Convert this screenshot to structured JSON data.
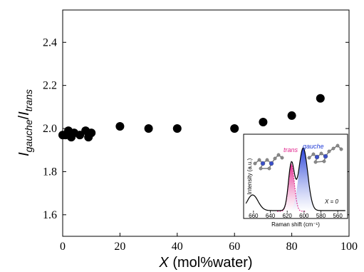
{
  "chart_data": {
    "type": "scatter",
    "xlabel": {
      "italic": "X",
      "rest": " (mol%water)"
    },
    "ylabel": {
      "i1": "I",
      "sub1": "gauche",
      "slash": "/",
      "i2": "I",
      "sub2": "trans"
    },
    "xlim": [
      0,
      100
    ],
    "ylim": [
      1.5,
      2.55
    ],
    "xticks": [
      0,
      20,
      40,
      60,
      80,
      100
    ],
    "yticks": [
      1.6,
      1.8,
      2.0,
      2.2,
      2.4
    ],
    "xtick_labels": [
      "0",
      "20",
      "40",
      "60",
      "80",
      "100"
    ],
    "ytick_labels": [
      "1.6",
      "1.8",
      "2.0",
      "2.2",
      "2.4"
    ],
    "grid": false,
    "points": [
      {
        "x": 0,
        "y": 1.97
      },
      {
        "x": 1,
        "y": 1.97
      },
      {
        "x": 2,
        "y": 1.99
      },
      {
        "x": 3,
        "y": 1.96
      },
      {
        "x": 4,
        "y": 1.98
      },
      {
        "x": 6,
        "y": 1.97
      },
      {
        "x": 8,
        "y": 1.99
      },
      {
        "x": 9,
        "y": 1.96
      },
      {
        "x": 10,
        "y": 1.98
      },
      {
        "x": 20,
        "y": 2.01
      },
      {
        "x": 30,
        "y": 2.0
      },
      {
        "x": 40,
        "y": 2.0
      },
      {
        "x": 60,
        "y": 2.0
      },
      {
        "x": 70,
        "y": 2.03
      },
      {
        "x": 80,
        "y": 2.06
      },
      {
        "x": 90,
        "y": 2.14
      }
    ],
    "marker_color": "#000000",
    "inset": {
      "type": "line",
      "xlabel": "Raman shift (cm⁻¹)",
      "ylabel": "Intensity (a.u.)",
      "xlim": [
        670,
        550
      ],
      "xticks": [
        660,
        640,
        620,
        600,
        580,
        560
      ],
      "xtick_labels": [
        "660",
        "640",
        "620",
        "600",
        "580",
        "560"
      ],
      "trans_label": "trans",
      "gauche_label": "gauche",
      "condition_label": "X = 0",
      "trans_color": "#e0218a",
      "gauche_color": "#1f3ad6",
      "trans_peak": {
        "center": 615,
        "height": 0.66
      },
      "gauche_peak": {
        "center": 601,
        "height": 0.88
      }
    }
  }
}
